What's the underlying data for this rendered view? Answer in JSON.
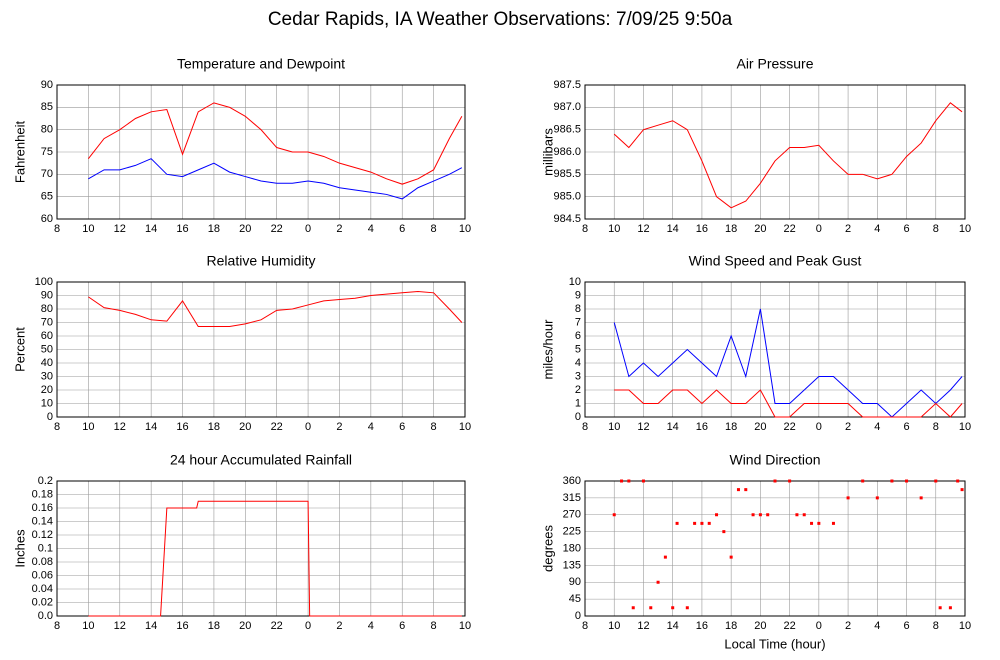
{
  "title": "Cedar Rapids, IA Weather Observations: 7/09/25 9:50a",
  "chart_data": [
    {
      "type": "line",
      "title": "Temperature and Dewpoint",
      "y_label": "Fahrenheit",
      "x": [
        10,
        11,
        12,
        13,
        14,
        15,
        16,
        17,
        18,
        19,
        20,
        21,
        22,
        23,
        24,
        25,
        26,
        27,
        28,
        29,
        30,
        31,
        32,
        33,
        33.8
      ],
      "series": [
        {
          "color": "#ff0000",
          "values": [
            73.5,
            78,
            80,
            82.5,
            84,
            84.5,
            74.5,
            84,
            86,
            85,
            83,
            80,
            76,
            75,
            75,
            74,
            72.5,
            71.5,
            70.5,
            69,
            67.8,
            69,
            71,
            78,
            83
          ]
        },
        {
          "color": "#0000ff",
          "values": [
            69,
            71,
            71,
            72,
            73.5,
            70,
            69.5,
            71,
            72.5,
            70.5,
            69.5,
            68.5,
            68,
            68,
            68.5,
            68,
            67,
            66.5,
            66,
            65.5,
            64.5,
            67,
            68.5,
            70,
            71.5
          ]
        }
      ],
      "xlim": [
        8,
        34
      ],
      "xticks": [
        8,
        10,
        12,
        14,
        16,
        18,
        20,
        22,
        {
          "value": 24,
          "label": "0"
        },
        {
          "value": 26,
          "label": "2"
        },
        {
          "value": 28,
          "label": "4"
        },
        {
          "value": 30,
          "label": "6"
        },
        {
          "value": 32,
          "label": "8"
        },
        {
          "value": 34,
          "label": "10"
        }
      ],
      "ylim": [
        60,
        90
      ],
      "yticks": [
        60,
        65,
        70,
        75,
        80,
        85,
        90
      ],
      "grid": true
    },
    {
      "type": "line",
      "title": "Air Pressure",
      "y_label": "millibars",
      "x": [
        10,
        11,
        12,
        13,
        14,
        15,
        16,
        17,
        18,
        19,
        20,
        21,
        22,
        23,
        24,
        25,
        26,
        27,
        28,
        29,
        30,
        31,
        32,
        33,
        33.8
      ],
      "series": [
        {
          "color": "#ff0000",
          "values": [
            986.4,
            986.1,
            986.5,
            986.6,
            986.7,
            986.5,
            985.8,
            985.0,
            984.75,
            984.9,
            985.3,
            985.8,
            986.1,
            986.1,
            986.15,
            985.8,
            985.5,
            985.5,
            985.4,
            985.5,
            985.9,
            986.2,
            986.7,
            987.1,
            986.9
          ]
        }
      ],
      "xlim": [
        8,
        34
      ],
      "xticks": [
        8,
        10,
        12,
        14,
        16,
        18,
        20,
        22,
        {
          "value": 24,
          "label": "0"
        },
        {
          "value": 26,
          "label": "2"
        },
        {
          "value": 28,
          "label": "4"
        },
        {
          "value": 30,
          "label": "6"
        },
        {
          "value": 32,
          "label": "8"
        },
        {
          "value": 34,
          "label": "10"
        }
      ],
      "ylim": [
        984.5,
        987.5
      ],
      "yticks": [
        984.5,
        {
          "value": 985,
          "label": "985.0"
        },
        985.5,
        {
          "value": 986,
          "label": "986.0"
        },
        986.5,
        {
          "value": 987,
          "label": "987.0"
        },
        987.5
      ],
      "grid": true
    },
    {
      "type": "line",
      "title": "Relative Humidity",
      "y_label": "Percent",
      "x": [
        10,
        11,
        12,
        13,
        14,
        15,
        16,
        17,
        18,
        19,
        20,
        21,
        22,
        23,
        24,
        25,
        26,
        27,
        28,
        29,
        30,
        31,
        32,
        33,
        33.8
      ],
      "series": [
        {
          "color": "#ff0000",
          "values": [
            89,
            81,
            79,
            76,
            72,
            71,
            86,
            67,
            67,
            67,
            69,
            72,
            79,
            80,
            83,
            86,
            87,
            88,
            90,
            91,
            92,
            93,
            92,
            80,
            70
          ]
        }
      ],
      "xlim": [
        8,
        34
      ],
      "xticks": [
        8,
        10,
        12,
        14,
        16,
        18,
        20,
        22,
        {
          "value": 24,
          "label": "0"
        },
        {
          "value": 26,
          "label": "2"
        },
        {
          "value": 28,
          "label": "4"
        },
        {
          "value": 30,
          "label": "6"
        },
        {
          "value": 32,
          "label": "8"
        },
        {
          "value": 34,
          "label": "10"
        }
      ],
      "ylim": [
        0,
        100
      ],
      "yticks": [
        0,
        10,
        20,
        30,
        40,
        50,
        60,
        70,
        80,
        90,
        100
      ],
      "grid": true
    },
    {
      "type": "line",
      "title": "Wind Speed and Peak Gust",
      "y_label": "miles/hour",
      "x": [
        10,
        11,
        12,
        13,
        14,
        15,
        16,
        17,
        18,
        19,
        20,
        21,
        22,
        23,
        24,
        25,
        26,
        27,
        28,
        29,
        30,
        31,
        32,
        33,
        33.8
      ],
      "series": [
        {
          "color": "#0000ff",
          "values": [
            7,
            3,
            4,
            3,
            4,
            5,
            4,
            3,
            6,
            3,
            8,
            1,
            1,
            2,
            3,
            3,
            2,
            1,
            1,
            0,
            1,
            2,
            1,
            2,
            3
          ]
        },
        {
          "color": "#ff0000",
          "values": [
            2,
            2,
            1,
            1,
            2,
            2,
            1,
            2,
            1,
            1,
            2,
            0,
            0,
            1,
            1,
            1,
            1,
            0,
            0,
            0,
            0,
            0,
            1,
            0,
            1
          ]
        }
      ],
      "xlim": [
        8,
        34
      ],
      "xticks": [
        8,
        10,
        12,
        14,
        16,
        18,
        20,
        22,
        {
          "value": 24,
          "label": "0"
        },
        {
          "value": 26,
          "label": "2"
        },
        {
          "value": 28,
          "label": "4"
        },
        {
          "value": 30,
          "label": "6"
        },
        {
          "value": 32,
          "label": "8"
        },
        {
          "value": 34,
          "label": "10"
        }
      ],
      "ylim": [
        0,
        10
      ],
      "yticks": [
        0,
        1,
        2,
        3,
        4,
        5,
        6,
        7,
        8,
        9,
        10
      ],
      "grid": true
    },
    {
      "type": "line",
      "title": "24 hour Accumulated Rainfall",
      "y_label": "Inches",
      "x": [
        10,
        14.6,
        15,
        16,
        16.9,
        17,
        24,
        24.1,
        33.8
      ],
      "series": [
        {
          "color": "#ff0000",
          "values": [
            0,
            0,
            0.16,
            0.16,
            0.16,
            0.17,
            0.17,
            0,
            0
          ]
        }
      ],
      "xlim": [
        8,
        34
      ],
      "xticks": [
        8,
        10,
        12,
        14,
        16,
        18,
        20,
        22,
        {
          "value": 24,
          "label": "0"
        },
        {
          "value": 26,
          "label": "2"
        },
        {
          "value": 28,
          "label": "4"
        },
        {
          "value": 30,
          "label": "6"
        },
        {
          "value": 32,
          "label": "8"
        },
        {
          "value": 34,
          "label": "10"
        }
      ],
      "ylim": [
        0,
        0.2
      ],
      "yticks": [
        {
          "value": 0,
          "label": "0.0"
        },
        0.02,
        0.04,
        0.06,
        0.08,
        0.1,
        0.12,
        0.14,
        0.16,
        0.18,
        0.2
      ],
      "grid": true
    },
    {
      "type": "scatter",
      "title": "Wind Direction",
      "y_label": "degrees",
      "x_label": "Local Time (hour)",
      "x": [
        10,
        10.5,
        11,
        11.3,
        12,
        12.5,
        13,
        13.5,
        14,
        14.3,
        15,
        15.5,
        16,
        16.5,
        17,
        17.5,
        18,
        18.5,
        19,
        19.5,
        20,
        20.5,
        21,
        22,
        22.5,
        23,
        23.5,
        24,
        25,
        26,
        27,
        28,
        29,
        30,
        31,
        32,
        32.3,
        33,
        33.5,
        33.8
      ],
      "series": [
        {
          "color": "#ff0000",
          "values": [
            270,
            360,
            360,
            22,
            360,
            22,
            90,
            157,
            22,
            247,
            22,
            247,
            247,
            247,
            270,
            225,
            157,
            337,
            337,
            270,
            270,
            270,
            360,
            360,
            270,
            270,
            247,
            247,
            247,
            315,
            360,
            315,
            360,
            360,
            315,
            360,
            22,
            22,
            360,
            337
          ]
        }
      ],
      "xlim": [
        8,
        34
      ],
      "xticks": [
        8,
        10,
        12,
        14,
        16,
        18,
        20,
        22,
        {
          "value": 24,
          "label": "0"
        },
        {
          "value": 26,
          "label": "2"
        },
        {
          "value": 28,
          "label": "4"
        },
        {
          "value": 30,
          "label": "6"
        },
        {
          "value": 32,
          "label": "8"
        },
        {
          "value": 34,
          "label": "10"
        }
      ],
      "ylim": [
        0,
        360
      ],
      "yticks": [
        0,
        45,
        90,
        135,
        180,
        225,
        270,
        315,
        360
      ],
      "grid": true
    }
  ]
}
